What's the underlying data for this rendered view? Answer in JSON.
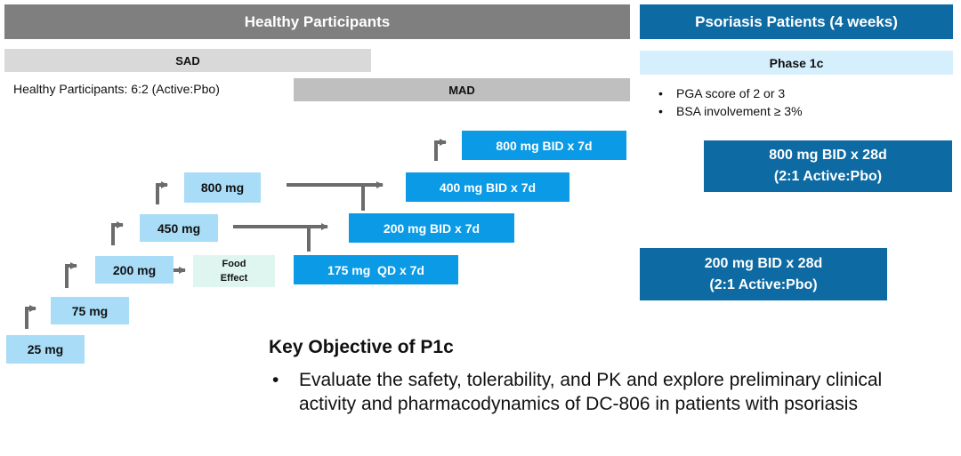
{
  "header": {
    "healthy_title": "Healthy Participants",
    "patients_title": "Psoriasis Patients (4 weeks)"
  },
  "sad": {
    "label": "SAD"
  },
  "mad": {
    "label": "MAD"
  },
  "healthy_ratio": "Healthy Participants: 6:2 (Active:Pbo)",
  "phase": {
    "label": "Phase 1c",
    "criteria": [
      "PGA score of 2 or 3",
      "BSA involvement ≥ 3%"
    ]
  },
  "sad_doses": [
    "25 mg",
    "75 mg",
    "200 mg",
    "450 mg",
    "800 mg"
  ],
  "food_effect": {
    "line1": "Food",
    "line2": "Effect"
  },
  "mad_doses": [
    "175 mg  QD x 7d",
    "200 mg BID x 7d",
    "400 mg BID x 7d",
    "800 mg BID x 7d"
  ],
  "patient_cohorts": [
    {
      "line1": "800 mg BID x 28d",
      "line2": "(2:1 Active:Pbo)"
    },
    {
      "line1": "200 mg BID x 28d",
      "line2": "(2:1 Active:Pbo)"
    }
  ],
  "objective": {
    "title": "Key Objective of P1c",
    "bullet": "Evaluate the safety, tolerability, and PK and explore preliminary clinical activity and pharmacodynamics of DC-806 in patients with psoriasis"
  },
  "colors": {
    "gray_header": "#7f7f7f",
    "patients_header": "#0d6aa3",
    "light_gray": "#d9d9d9",
    "mad_gray": "#bfbfbf",
    "phase_bg": "#d6effd",
    "sad_dose": "#a9dcf7",
    "food_bg": "#dff5ef",
    "mad_dose": "#0b9ae6",
    "patient_box": "#0d6aa3",
    "arrow": "#6b6b6b"
  }
}
